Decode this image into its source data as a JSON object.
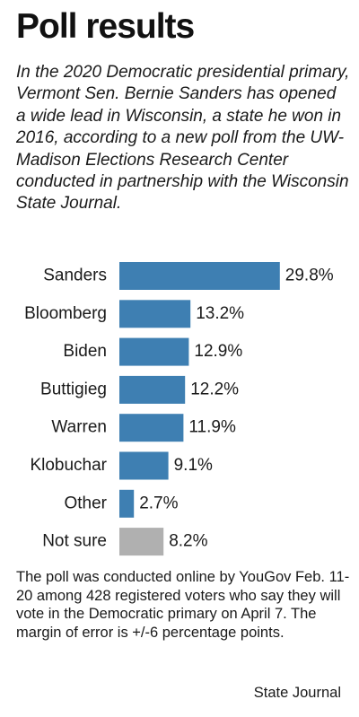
{
  "header": {
    "title": "Poll results",
    "subtitle": "In the 2020 Democratic presidential primary, Vermont Sen. Bernie Sanders has opened a wide lead in Wisconsin, a state he won in 2016, according to a new poll from the UW-Madison Elections Research Center conducted in partnership with the Wisconsin State Journal."
  },
  "chart_data": {
    "type": "bar",
    "orientation": "horizontal",
    "title": "",
    "xlabel": "",
    "ylabel": "",
    "categories": [
      "Sanders",
      "Bloomberg",
      "Biden",
      "Buttigieg",
      "Warren",
      "Klobuchar",
      "Other",
      "Not sure"
    ],
    "values": [
      29.8,
      13.2,
      12.9,
      12.2,
      11.9,
      9.1,
      2.7,
      8.2
    ],
    "data_labels": [
      "29.8%",
      "13.2%",
      "12.9%",
      "12.2%",
      "11.9%",
      "9.1%",
      "2.7%",
      "8.2%"
    ],
    "unit": "%",
    "xlim": [
      0,
      30
    ],
    "grid": false,
    "legend": "none",
    "colors": {
      "candidate": "#3e7fb2",
      "not_sure": "#b0b0b0"
    }
  },
  "footer": {
    "note": "The poll was conducted online by YouGov Feb. 11-20 among 428 registered voters who say they will vote in the Democratic primary on April 7. The margin of error is +/-6 percentage points.",
    "source": "State Journal"
  }
}
